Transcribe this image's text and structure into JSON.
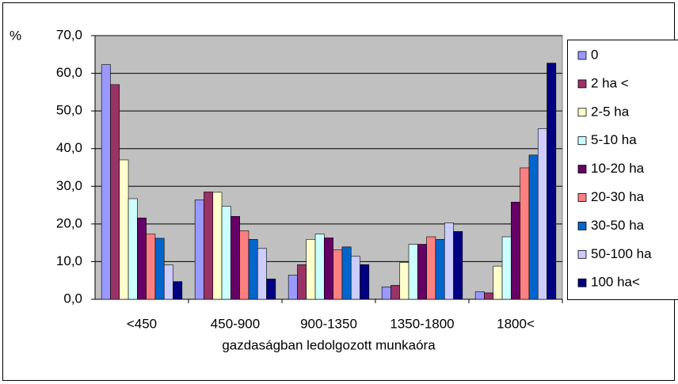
{
  "chart_data": {
    "type": "bar",
    "y_unit_label": "%",
    "x_label": "gazdaságban ledolgozott munkaóra",
    "categories": [
      "<450",
      "450-900",
      "900-1350",
      "1350-1800",
      "1800<"
    ],
    "series": [
      {
        "name": "0",
        "color": "#9999ff",
        "values": [
          62.3,
          26.4,
          6.4,
          3.3,
          2.0
        ]
      },
      {
        "name": "2 ha <",
        "color": "#993366",
        "values": [
          57.0,
          28.5,
          9.2,
          3.7,
          1.7
        ]
      },
      {
        "name": "2-5 ha",
        "color": "#ffffcc",
        "values": [
          37.0,
          28.4,
          15.9,
          9.8,
          8.8
        ]
      },
      {
        "name": "5-10 ha",
        "color": "#ccffff",
        "values": [
          26.7,
          24.7,
          17.3,
          14.6,
          16.6
        ]
      },
      {
        "name": "10-20 ha",
        "color": "#660066",
        "values": [
          21.6,
          22.0,
          16.3,
          14.6,
          25.8
        ]
      },
      {
        "name": "20-30 ha",
        "color": "#ff8080",
        "values": [
          17.3,
          18.2,
          13.1,
          16.6,
          34.9
        ]
      },
      {
        "name": "30-50 ha",
        "color": "#0066cc",
        "values": [
          16.2,
          15.9,
          13.9,
          15.9,
          38.3
        ]
      },
      {
        "name": "50-100 ha",
        "color": "#ccccff",
        "values": [
          9.1,
          13.5,
          11.4,
          20.3,
          45.3
        ]
      },
      {
        "name": "100 ha<",
        "color": "#000080",
        "values": [
          4.7,
          5.4,
          9.2,
          18.0,
          62.7
        ]
      }
    ],
    "ylim": [
      0,
      70
    ],
    "yticks": [
      {
        "value": 0,
        "label": "0,0"
      },
      {
        "value": 10,
        "label": "10,0"
      },
      {
        "value": 20,
        "label": "20,0"
      },
      {
        "value": 30,
        "label": "30,0"
      },
      {
        "value": 40,
        "label": "40,0"
      },
      {
        "value": 50,
        "label": "50,0"
      },
      {
        "value": 60,
        "label": "60,0"
      },
      {
        "value": 70,
        "label": "70,0"
      }
    ],
    "grid": true,
    "plot_background": "#c0c0c0",
    "legend": "right"
  }
}
